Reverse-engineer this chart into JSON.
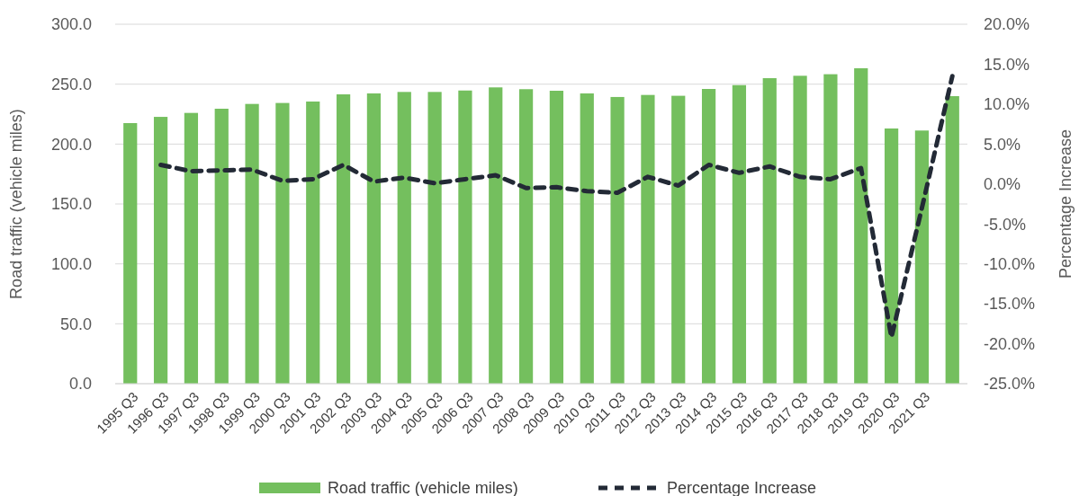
{
  "chart_data": {
    "type": "bar",
    "ylabel": "Road traffic (vehicle miles)",
    "y2label": "Percentage Increase",
    "categories": [
      "1995 Q3",
      "1996 Q3",
      "1997 Q3",
      "1998 Q3",
      "1999 Q3",
      "2000 Q3",
      "2001 Q3",
      "2002 Q3",
      "2003 Q3",
      "2004 Q3",
      "2005 Q3",
      "2006 Q3",
      "2007 Q3",
      "2008 Q3",
      "2009 Q3",
      "2010 Q3",
      "2011 Q3",
      "2012 Q3",
      "2013 Q3",
      "2014 Q3",
      "2015 Q3",
      "2016 Q3",
      "2017 Q3",
      "2018 Q3",
      "2019 Q3",
      "2020 Q3",
      "2021 Q3",
      null
    ],
    "series": [
      {
        "name": "Road traffic (vehicle miles)",
        "color": "#74bf5e",
        "values": [
          217.5,
          222.7,
          226,
          229.5,
          233.5,
          234.3,
          235.5,
          241.5,
          242.3,
          243.5,
          243.5,
          244.7,
          247.3,
          245.8,
          244.5,
          242.3,
          239.3,
          241,
          240.3,
          246,
          249.2,
          255,
          257,
          258.3,
          263.3,
          213,
          211.3,
          240
        ]
      },
      {
        "name": "Percentage Increase",
        "type": "line",
        "axis": "y2",
        "color": "#232a36",
        "line_style": "dashed",
        "marker": "none",
        "values": [
          null,
          2.4,
          1.6,
          1.7,
          1.8,
          0.4,
          0.6,
          2.4,
          0.3,
          0.8,
          0.1,
          0.6,
          1.1,
          -0.5,
          -0.4,
          -0.9,
          -1.1,
          0.9,
          -0.2,
          2.4,
          1.4,
          2.2,
          0.9,
          0.6,
          2.0,
          -19.2,
          -3.0,
          13.5
        ]
      }
    ],
    "ylim": [
      0,
      300
    ],
    "yticks": [
      {
        "value": 0,
        "label": "0.0"
      },
      {
        "value": 50,
        "label": "50.0"
      },
      {
        "value": 100,
        "label": "100.0"
      },
      {
        "value": 150,
        "label": "150.0"
      },
      {
        "value": 200,
        "label": "200.0"
      },
      {
        "value": 250,
        "label": "250.0"
      },
      {
        "value": 300,
        "label": "300.0"
      }
    ],
    "y2lim": [
      -25,
      20
    ],
    "y2ticks": [
      {
        "value": -25,
        "label": "-25.0%"
      },
      {
        "value": -20,
        "label": "-20.0%"
      },
      {
        "value": -15,
        "label": "-15.0%"
      },
      {
        "value": -10,
        "label": "-10.0%"
      },
      {
        "value": -5,
        "label": "-5.0%"
      },
      {
        "value": 0,
        "label": "0.0%"
      },
      {
        "value": 5,
        "label": "5.0%"
      },
      {
        "value": 10,
        "label": "10.0%"
      },
      {
        "value": 15,
        "label": "15.0%"
      },
      {
        "value": 20,
        "label": "20.0%"
      }
    ],
    "grid": "y",
    "legend": "bottom"
  }
}
